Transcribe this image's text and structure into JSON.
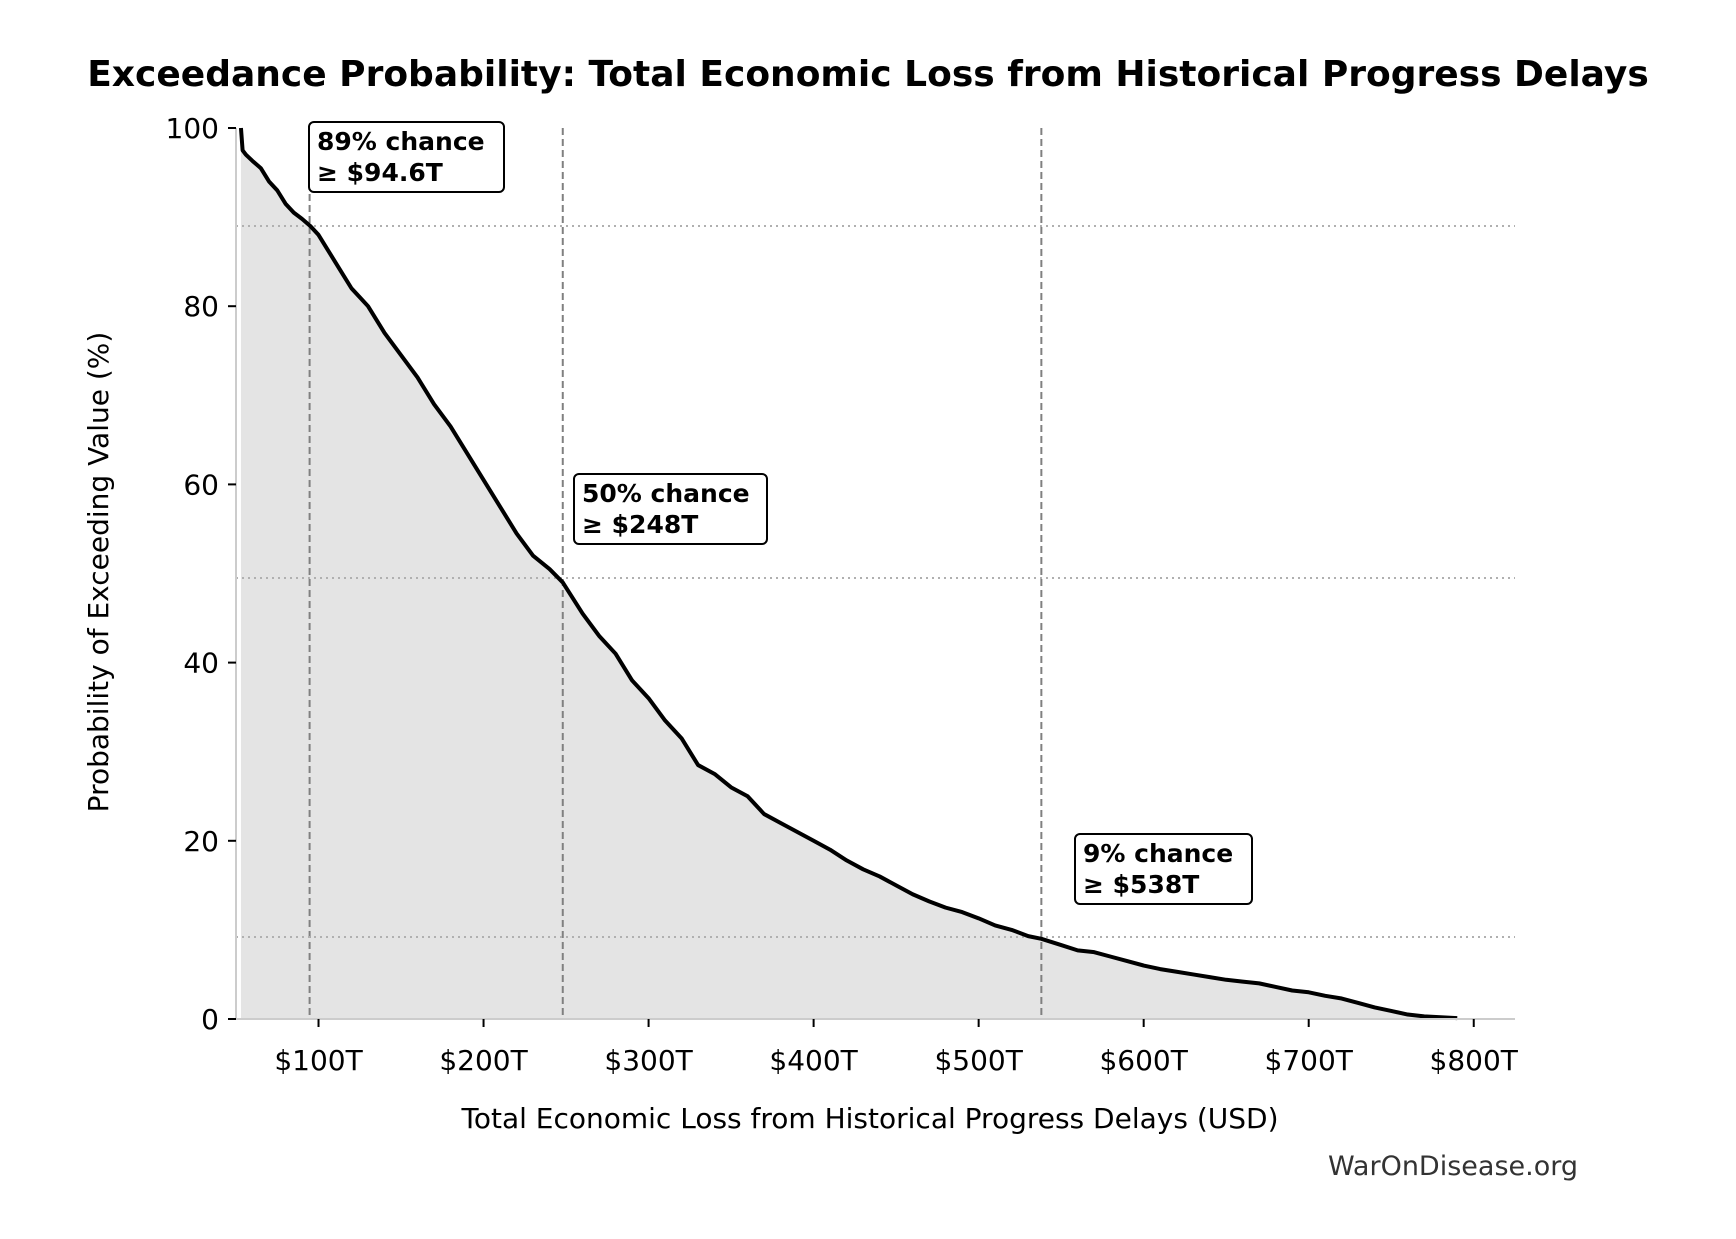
{
  "chart_data": {
    "type": "area",
    "title": "Exceedance Probability: Total Economic Loss from Historical Progress Delays",
    "xlabel": "Total Economic Loss from Historical Progress Delays (USD)",
    "ylabel": "Probability of Exceeding Value (%)",
    "xlim": [
      50,
      825
    ],
    "ylim": [
      0,
      100
    ],
    "x_ticks": [
      {
        "value": 100,
        "label": "$100T"
      },
      {
        "value": 200,
        "label": "$200T"
      },
      {
        "value": 300,
        "label": "$300T"
      },
      {
        "value": 400,
        "label": "$400T"
      },
      {
        "value": 500,
        "label": "$500T"
      },
      {
        "value": 600,
        "label": "$600T"
      },
      {
        "value": 700,
        "label": "$700T"
      },
      {
        "value": 800,
        "label": "$800T"
      }
    ],
    "y_ticks": [
      {
        "value": 0,
        "label": "0"
      },
      {
        "value": 20,
        "label": "20"
      },
      {
        "value": 40,
        "label": "40"
      },
      {
        "value": 60,
        "label": "60"
      },
      {
        "value": 80,
        "label": "80"
      },
      {
        "value": 100,
        "label": "100"
      }
    ],
    "grid": false,
    "series": [
      {
        "x": [
          53,
          54,
          56,
          60,
          65,
          70,
          75,
          80,
          85,
          90,
          95,
          100,
          105,
          110,
          115,
          120,
          125,
          130,
          135,
          140,
          150,
          160,
          170,
          180,
          190,
          200,
          210,
          220,
          230,
          240,
          248,
          260,
          270,
          280,
          290,
          300,
          310,
          320,
          330,
          340,
          350,
          360,
          370,
          380,
          390,
          400,
          410,
          420,
          430,
          440,
          450,
          460,
          470,
          480,
          490,
          500,
          510,
          520,
          530,
          538,
          550,
          560,
          570,
          580,
          590,
          600,
          610,
          620,
          630,
          640,
          650,
          660,
          670,
          680,
          690,
          700,
          710,
          720,
          730,
          740,
          750,
          760,
          770,
          780,
          790
        ],
        "y": [
          100,
          97.5,
          97,
          96.3,
          95.5,
          94,
          93,
          91.5,
          90.5,
          89.8,
          89,
          88,
          86.5,
          85,
          83.5,
          82,
          81,
          80,
          78.5,
          77,
          74.5,
          72,
          69,
          66.5,
          63.5,
          60.5,
          57.5,
          54.5,
          52,
          50.5,
          49,
          45.5,
          43,
          41,
          38,
          36,
          33.5,
          31.5,
          28.5,
          27.5,
          26,
          25,
          23,
          22,
          21,
          20,
          19,
          17.8,
          16.8,
          16,
          15,
          14,
          13.2,
          12.5,
          12,
          11.3,
          10.5,
          10,
          9.3,
          9,
          8.3,
          7.7,
          7.5,
          7,
          6.5,
          6,
          5.6,
          5.3,
          5,
          4.7,
          4.4,
          4.2,
          4,
          3.6,
          3.2,
          3,
          2.6,
          2.3,
          1.8,
          1.3,
          0.9,
          0.5,
          0.3,
          0.2,
          0.1
        ]
      }
    ],
    "reference_lines": [
      {
        "x": 94.6,
        "y": 89
      },
      {
        "x": 248,
        "y": 49.5
      },
      {
        "x": 538,
        "y": 9.2
      }
    ],
    "annotations": [
      {
        "line1": "89% chance",
        "line2": "≥ $94.6T"
      },
      {
        "line1": "50% chance",
        "line2": "≥ $248T"
      },
      {
        "line1": "9% chance",
        "line2": "≥ $538T"
      }
    ],
    "colors": {
      "line": "#000000",
      "fill": "#e4e4e4",
      "reference_vertical": "#808080",
      "reference_horizontal": "#b0b0b0"
    }
  },
  "footer": {
    "source": "WarOnDisease.org"
  }
}
